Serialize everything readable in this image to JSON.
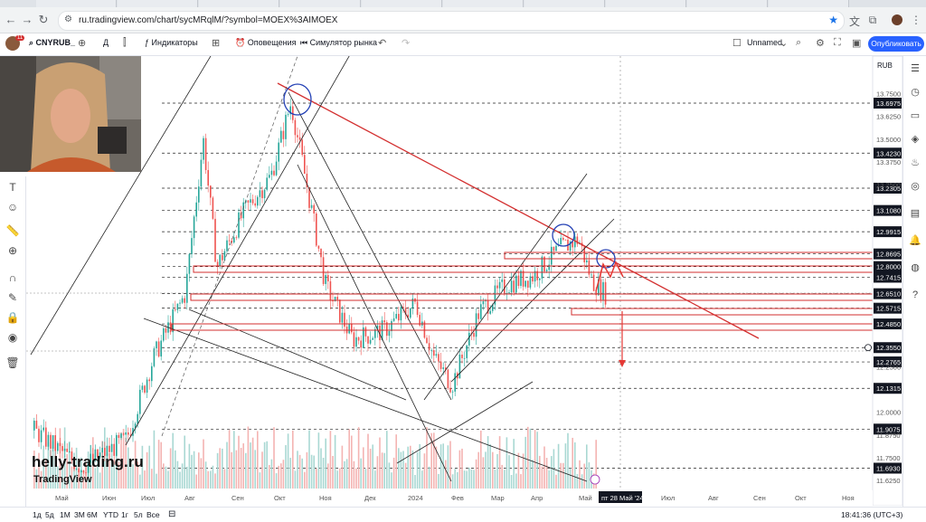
{
  "browser": {
    "url": "ru.tradingview.com/chart/sycMRqlM/?symbol=MOEX%3AIMOEX"
  },
  "toolbar": {
    "symbol": "CNYRUB_",
    "interval": "Д",
    "indicators": "Индикаторы",
    "alerts": "Оповещения",
    "replay": "Симулятор рынка",
    "layout_name": "Unnamed",
    "publish": "Опубликовать",
    "avatar_badge": "11"
  },
  "price_axis": {
    "currency": "RUB",
    "ticks": [
      "13.7500",
      "13.6250",
      "13.5000",
      "13.3750",
      "13.2500",
      "12.2500",
      "12.0000",
      "11.8750",
      "11.7500",
      "11.6250"
    ],
    "level_labels": [
      "13.6975",
      "13.4230",
      "13.2305",
      "13.1080",
      "12.9915",
      "12.8695",
      "12.8000",
      "12.7415",
      "12.6510",
      "12.5715",
      "12.4850",
      "12.3550",
      "12.2765",
      "12.1315",
      "11.9075",
      "11.6930"
    ],
    "current_price": "12.3550"
  },
  "time_axis": {
    "labels": [
      "Май",
      "Июн",
      "Июл",
      "Авг",
      "Сен",
      "Окт",
      "Ноя",
      "Дек",
      "2024",
      "Фев",
      "Мар",
      "Апр",
      "Май",
      "Июл",
      "Авг",
      "Сен",
      "Окт",
      "Ноя"
    ],
    "cursor_label": "пт 28 Май '24"
  },
  "watermark": {
    "site": "helly-trading.ru",
    "brand": "TradingView"
  },
  "bottom": {
    "ranges": [
      "1д",
      "5д",
      "1М",
      "3М",
      "6М",
      "YTD",
      "1г",
      "5л",
      "Все"
    ],
    "clock": "18:41:36 (UTC+3)"
  },
  "colors": {
    "accent": "#2962ff",
    "trend": "#d32f2f",
    "up": "#26a69a",
    "down": "#ef5350"
  },
  "icons": [
    "back-icon",
    "forward-icon",
    "reload-icon",
    "lock-icon",
    "star-icon",
    "plus-icon",
    "undo-icon",
    "camera-icon",
    "gear-icon",
    "crosshair-icon",
    "magnet-icon",
    "trash-icon",
    "clock-icon",
    "bell-icon"
  ]
}
